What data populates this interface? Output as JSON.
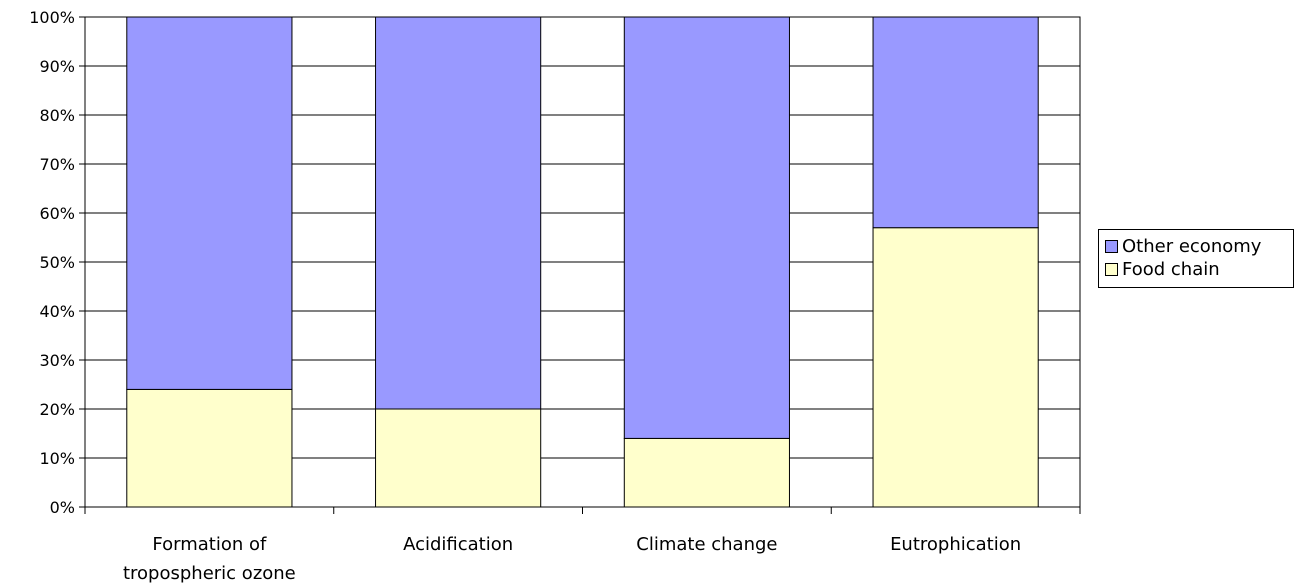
{
  "chart_data": {
    "type": "bar",
    "stacked": true,
    "percent": true,
    "categories": [
      "Formation of tropospheric ozone",
      "Acidification",
      "Climate change",
      "Eutrophication"
    ],
    "category_label_lines": [
      [
        "Formation of",
        "tropospheric ozone"
      ],
      [
        "Acidification"
      ],
      [
        "Climate change"
      ],
      [
        "Eutrophication"
      ]
    ],
    "series": [
      {
        "name": "Food chain",
        "color": "#ffffcc",
        "values": [
          24,
          20,
          14,
          57
        ]
      },
      {
        "name": "Other economy",
        "color": "#9999ff",
        "values": [
          76,
          80,
          86,
          43
        ]
      }
    ],
    "ylim": [
      0,
      100
    ],
    "yticks": [
      "0%",
      "10%",
      "20%",
      "30%",
      "40%",
      "50%",
      "60%",
      "70%",
      "80%",
      "90%",
      "100%"
    ],
    "grid": true,
    "legend_position": "right",
    "title": "",
    "xlabel": "",
    "ylabel": ""
  },
  "legend": {
    "items": [
      {
        "label": "Other economy",
        "color": "#9999ff"
      },
      {
        "label": "Food chain",
        "color": "#ffffcc"
      }
    ]
  }
}
